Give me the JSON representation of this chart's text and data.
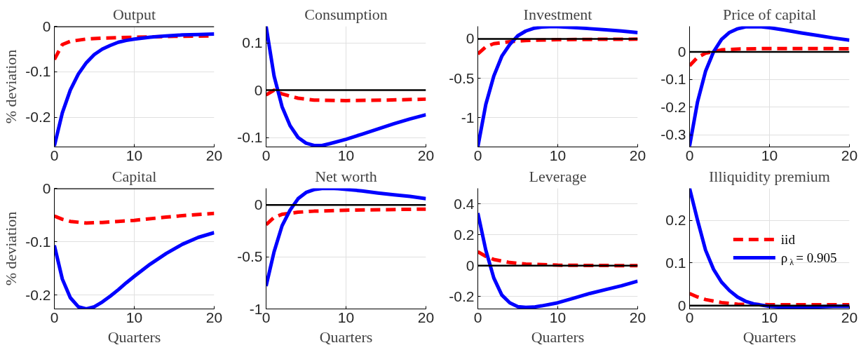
{
  "chart_data": [
    {
      "type": "line",
      "title": "Output",
      "ylabel": "% deviation",
      "xlim": [
        0,
        20
      ],
      "xticks": [
        0,
        10,
        20
      ],
      "ylim": [
        -0.265,
        0
      ],
      "yticks": [
        -0.2,
        -0.1,
        0
      ],
      "grid": true,
      "legend": false,
      "ref_lines": [
        {
          "axis": "y",
          "value": 0,
          "color": "#000000"
        }
      ],
      "series": [
        {
          "color": "#ff0000",
          "line_style": "dashed",
          "x": [
            0,
            1,
            2,
            4,
            6,
            10,
            15,
            20
          ],
          "values": [
            -0.073,
            -0.04,
            -0.033,
            -0.028,
            -0.026,
            -0.024,
            -0.022,
            -0.021
          ]
        },
        {
          "color": "#0000ff",
          "line_style": "solid",
          "x": [
            0,
            1,
            2,
            3,
            4,
            5,
            6,
            7,
            8,
            9,
            10,
            12,
            14,
            16,
            18,
            20
          ],
          "values": [
            -0.263,
            -0.19,
            -0.14,
            -0.105,
            -0.08,
            -0.062,
            -0.05,
            -0.042,
            -0.035,
            -0.031,
            -0.028,
            -0.024,
            -0.021,
            -0.019,
            -0.018,
            -0.017
          ]
        }
      ]
    },
    {
      "type": "line",
      "title": "Consumption",
      "xlim": [
        0,
        20
      ],
      "xticks": [
        0,
        10,
        20
      ],
      "ylim": [
        -0.12,
        0.135
      ],
      "yticks": [
        -0.1,
        0,
        0.1
      ],
      "grid": true,
      "legend": false,
      "ref_lines": [
        {
          "axis": "y",
          "value": 0,
          "color": "#000000"
        }
      ],
      "series": [
        {
          "color": "#ff0000",
          "line_style": "dashed",
          "x": [
            0,
            1,
            2,
            4,
            6,
            10,
            15,
            20
          ],
          "values": [
            -0.01,
            0.0,
            -0.008,
            -0.017,
            -0.021,
            -0.022,
            -0.021,
            -0.019
          ]
        },
        {
          "color": "#0000ff",
          "line_style": "solid",
          "x": [
            0,
            1,
            2,
            3,
            4,
            5,
            6,
            7,
            8,
            10,
            12,
            14,
            16,
            18,
            20
          ],
          "values": [
            0.135,
            0.03,
            -0.035,
            -0.075,
            -0.1,
            -0.112,
            -0.117,
            -0.117,
            -0.113,
            -0.104,
            -0.093,
            -0.082,
            -0.071,
            -0.061,
            -0.052
          ]
        }
      ]
    },
    {
      "type": "line",
      "title": "Investment",
      "xlim": [
        0,
        20
      ],
      "xticks": [
        0,
        10,
        20
      ],
      "ylim": [
        -1.37,
        0.16
      ],
      "yticks": [
        -1,
        -0.5,
        0
      ],
      "grid": true,
      "legend": false,
      "ref_lines": [
        {
          "axis": "y",
          "value": 0,
          "color": "#000000"
        }
      ],
      "series": [
        {
          "color": "#ff0000",
          "line_style": "dashed",
          "x": [
            0,
            1,
            2,
            4,
            6,
            10,
            15,
            20
          ],
          "values": [
            -0.19,
            -0.1,
            -0.06,
            -0.035,
            -0.02,
            -0.01,
            -0.005,
            -0.003
          ]
        },
        {
          "color": "#0000ff",
          "line_style": "solid",
          "x": [
            0,
            1,
            2,
            3,
            4,
            5,
            6,
            7,
            8,
            9,
            10,
            12,
            14,
            16,
            18,
            20
          ],
          "values": [
            -1.37,
            -0.83,
            -0.47,
            -0.22,
            -0.07,
            0.04,
            0.1,
            0.135,
            0.15,
            0.155,
            0.155,
            0.145,
            0.13,
            0.115,
            0.1,
            0.08
          ]
        }
      ]
    },
    {
      "type": "line",
      "title": "Price of capital",
      "xlim": [
        0,
        20
      ],
      "xticks": [
        0,
        10,
        20
      ],
      "ylim": [
        -0.343,
        0.092
      ],
      "yticks": [
        -0.3,
        -0.2,
        -0.1,
        0
      ],
      "grid": true,
      "legend": false,
      "ref_lines": [
        {
          "axis": "y",
          "value": 0,
          "color": "#000000"
        }
      ],
      "series": [
        {
          "color": "#ff0000",
          "line_style": "dashed",
          "x": [
            0,
            1,
            2,
            4,
            6,
            10,
            15,
            20
          ],
          "values": [
            -0.05,
            -0.02,
            -0.005,
            0.007,
            0.01,
            0.012,
            0.012,
            0.011
          ]
        },
        {
          "color": "#0000ff",
          "line_style": "solid",
          "x": [
            0,
            1,
            2,
            3,
            4,
            5,
            6,
            7,
            8,
            9,
            10,
            12,
            14,
            16,
            18,
            20
          ],
          "values": [
            -0.34,
            -0.18,
            -0.07,
            0.0,
            0.045,
            0.07,
            0.083,
            0.09,
            0.09,
            0.09,
            0.087,
            0.078,
            0.068,
            0.059,
            0.05,
            0.042
          ]
        }
      ]
    },
    {
      "type": "line",
      "title": "Capital",
      "xlabel": "Quarters",
      "ylabel": "% deviation",
      "xlim": [
        0,
        20
      ],
      "xticks": [
        0,
        10,
        20
      ],
      "ylim": [
        -0.226,
        0
      ],
      "yticks": [
        -0.2,
        -0.1,
        0
      ],
      "grid": true,
      "legend": false,
      "ref_lines": [
        {
          "axis": "y",
          "value": 0,
          "color": "#000000"
        }
      ],
      "series": [
        {
          "color": "#ff0000",
          "line_style": "dashed",
          "x": [
            0,
            1,
            2,
            4,
            6,
            8,
            10,
            14,
            17,
            20
          ],
          "values": [
            -0.052,
            -0.058,
            -0.062,
            -0.065,
            -0.064,
            -0.062,
            -0.06,
            -0.054,
            -0.05,
            -0.047
          ]
        },
        {
          "color": "#0000ff",
          "line_style": "solid",
          "x": [
            0,
            1,
            2,
            3,
            4,
            5,
            6,
            7,
            8,
            9,
            10,
            12,
            14,
            16,
            18,
            20
          ],
          "values": [
            -0.107,
            -0.17,
            -0.205,
            -0.222,
            -0.226,
            -0.222,
            -0.213,
            -0.202,
            -0.19,
            -0.177,
            -0.165,
            -0.142,
            -0.122,
            -0.105,
            -0.092,
            -0.083
          ]
        }
      ]
    },
    {
      "type": "line",
      "title": "Net worth",
      "xlabel": "Quarters",
      "xlim": [
        0,
        20
      ],
      "xticks": [
        0,
        10,
        20
      ],
      "ylim": [
        -1,
        0.16
      ],
      "yticks": [
        -1,
        -0.5,
        0
      ],
      "grid": true,
      "legend": false,
      "ref_lines": [
        {
          "axis": "y",
          "value": 0,
          "color": "#000000"
        }
      ],
      "series": [
        {
          "color": "#ff0000",
          "line_style": "dashed",
          "x": [
            0,
            1,
            2,
            4,
            6,
            10,
            15,
            20
          ],
          "values": [
            -0.19,
            -0.12,
            -0.09,
            -0.07,
            -0.06,
            -0.05,
            -0.045,
            -0.04
          ]
        },
        {
          "color": "#0000ff",
          "line_style": "solid",
          "x": [
            0,
            1,
            2,
            3,
            4,
            5,
            6,
            7,
            8,
            9,
            10,
            12,
            14,
            16,
            18,
            20
          ],
          "values": [
            -0.78,
            -0.45,
            -0.2,
            -0.05,
            0.06,
            0.12,
            0.148,
            0.158,
            0.16,
            0.157,
            0.15,
            0.135,
            0.115,
            0.098,
            0.082,
            0.06
          ]
        }
      ]
    },
    {
      "type": "line",
      "title": "Leverage",
      "xlabel": "Quarters",
      "xlim": [
        0,
        20
      ],
      "xticks": [
        0,
        10,
        20
      ],
      "ylim": [
        -0.28,
        0.5
      ],
      "yticks": [
        -0.2,
        0,
        0.2,
        0.4
      ],
      "grid": true,
      "legend": false,
      "ref_lines": [
        {
          "axis": "y",
          "value": 0,
          "color": "#000000"
        }
      ],
      "series": [
        {
          "color": "#ff0000",
          "line_style": "dashed",
          "x": [
            0,
            1,
            2,
            4,
            6,
            10,
            15,
            20
          ],
          "values": [
            0.09,
            0.06,
            0.04,
            0.02,
            0.01,
            0.003,
            0.001,
            0.0
          ]
        },
        {
          "color": "#0000ff",
          "line_style": "solid",
          "x": [
            0,
            1,
            2,
            3,
            4,
            5,
            6,
            7,
            8,
            10,
            12,
            14,
            16,
            18,
            20
          ],
          "values": [
            0.34,
            0.1,
            -0.08,
            -0.19,
            -0.24,
            -0.265,
            -0.27,
            -0.268,
            -0.26,
            -0.24,
            -0.21,
            -0.18,
            -0.155,
            -0.13,
            -0.1
          ]
        }
      ]
    },
    {
      "type": "line",
      "title": "Illiquidity premium",
      "xlabel": "Quarters",
      "xlim": [
        0,
        20
      ],
      "xticks": [
        0,
        10,
        20
      ],
      "ylim": [
        -0.008,
        0.275
      ],
      "yticks": [
        0,
        0.1,
        0.2
      ],
      "grid": true,
      "legend": "center right",
      "ref_lines": [
        {
          "axis": "y",
          "value": 0,
          "color": "#000000"
        }
      ],
      "series": [
        {
          "name": "iid",
          "color": "#ff0000",
          "line_style": "dashed",
          "x": [
            0,
            1,
            2,
            4,
            6,
            10,
            15,
            20
          ],
          "values": [
            0.028,
            0.02,
            0.014,
            0.007,
            0.003,
            0.002,
            0.002,
            0.002
          ]
        },
        {
          "name": "ρ$_{λ}$ = 0.905",
          "color": "#0000ff",
          "line_style": "solid",
          "x": [
            0,
            1,
            2,
            3,
            4,
            5,
            6,
            7,
            8,
            10,
            12,
            14,
            16,
            18,
            20
          ],
          "values": [
            0.275,
            0.2,
            0.13,
            0.085,
            0.055,
            0.035,
            0.02,
            0.01,
            0.004,
            -0.002,
            -0.004,
            -0.004,
            -0.003,
            -0.002,
            -0.002
          ]
        }
      ]
    }
  ]
}
